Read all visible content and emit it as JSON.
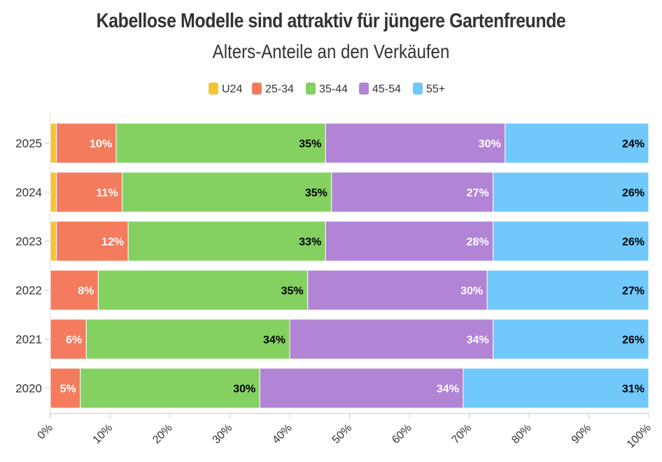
{
  "title": "Kabellose Modelle sind attraktiv für jüngere Gartenfreunde",
  "subtitle": "Alters-Anteile an den Verkäufen",
  "colors": {
    "U24": "#f5c431",
    "25-34": "#f47b5d",
    "35-44": "#84d162",
    "45-54": "#b184d6",
    "55+": "#71c8fb"
  },
  "chart_data": {
    "type": "bar",
    "orientation": "horizontal",
    "stacked": true,
    "categories": [
      "2025",
      "2024",
      "2023",
      "2022",
      "2021",
      "2020"
    ],
    "series": [
      {
        "name": "U24",
        "values": [
          1,
          1,
          1,
          0,
          0,
          0
        ],
        "labels": [
          "",
          "",
          "",
          "",
          "",
          ""
        ]
      },
      {
        "name": "25-34",
        "values": [
          10,
          11,
          12,
          8,
          6,
          5
        ],
        "labels": [
          "10%",
          "11%",
          "12%",
          "8%",
          "6%",
          "5%"
        ]
      },
      {
        "name": "35-44",
        "values": [
          35,
          35,
          33,
          35,
          34,
          30
        ],
        "labels": [
          "35%",
          "35%",
          "33%",
          "35%",
          "34%",
          "30%"
        ]
      },
      {
        "name": "45-54",
        "values": [
          30,
          27,
          28,
          30,
          34,
          34
        ],
        "labels": [
          "30%",
          "27%",
          "28%",
          "30%",
          "34%",
          "34%"
        ]
      },
      {
        "name": "55+",
        "values": [
          24,
          26,
          26,
          27,
          26,
          31
        ],
        "labels": [
          "24%",
          "26%",
          "26%",
          "27%",
          "26%",
          "31%"
        ]
      }
    ],
    "xlim": [
      0,
      100
    ],
    "x_ticks": [
      "0%",
      "10%",
      "20%",
      "30%",
      "40%",
      "50%",
      "60%",
      "70%",
      "80%",
      "90%",
      "100%"
    ],
    "legend_position": "top-center",
    "grid": false
  }
}
